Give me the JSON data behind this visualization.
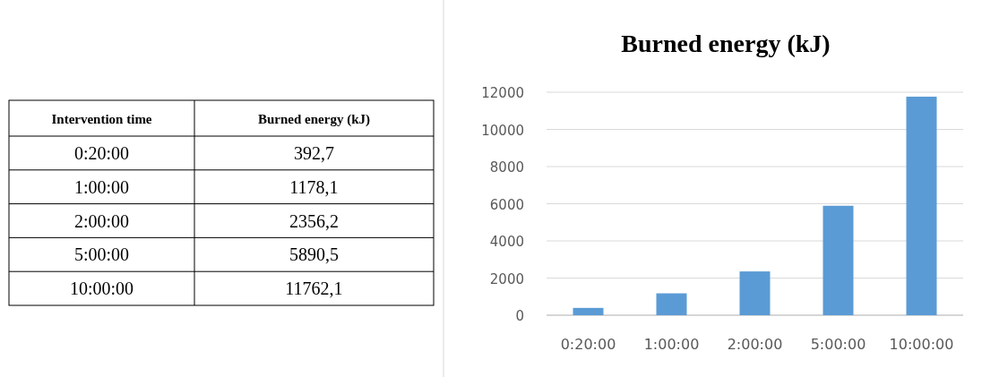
{
  "chart_data": [
    {
      "type": "other",
      "annotations": [
        "Intervention time",
        "Burned energy (kJ)",
        "0:20:00",
        "392,7",
        "1:00:00",
        "1178,1",
        "2:00:00",
        "2356,2",
        "5:00:00",
        "5890,5",
        "10:00:00",
        "11762,1"
      ]
    },
    {
      "type": "bar",
      "title": "Burned energy (kJ)",
      "categories": [
        "0:20:00",
        "1:00:00",
        "2:00:00",
        "5:00:00",
        "10:00:00"
      ],
      "values": [
        392.7,
        1178.1,
        2356.2,
        5890.5,
        11762.1
      ],
      "color": "#5b9bd5",
      "ylim": [
        0,
        12000
      ],
      "yticks": [
        0,
        2000,
        4000,
        6000,
        8000,
        10000,
        12000
      ],
      "grid": "y"
    }
  ]
}
